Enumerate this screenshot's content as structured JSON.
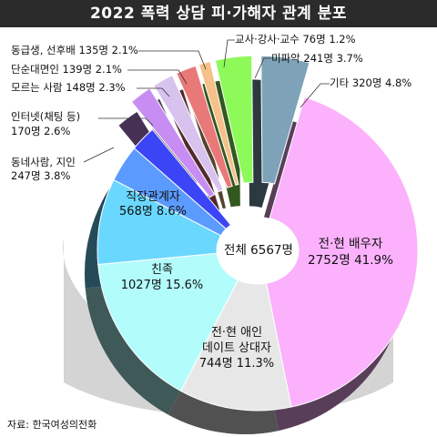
{
  "title": "2022 폭력 상담 피·가해자 관계 분포",
  "source": "자료: 한국여성의전화",
  "chart_data": {
    "type": "pie",
    "title": "2022 폭력 상담 피·가해자 관계 분포",
    "center_label": "전체 6567명",
    "total": 6567,
    "unit": "명",
    "slices": [
      {
        "name": "전·현 배우자",
        "count": 2752,
        "percent": 41.9,
        "color": "#fbb1fb",
        "label": "전·현 배우자",
        "value_text": "2752명 41.9%"
      },
      {
        "name": "전·현 애인 데이트 상대자",
        "count": 744,
        "percent": 11.3,
        "color": "#e7e7e7",
        "label1": "전·현 애인",
        "label2": "데이트 상대자",
        "value_text": "744명 11.3%"
      },
      {
        "name": "친족",
        "count": 1027,
        "percent": 15.6,
        "color": "#b3fcfc",
        "label": "친족",
        "value_text": "1027명 15.6%"
      },
      {
        "name": "직장관계자",
        "count": 568,
        "percent": 8.6,
        "color": "#6ad7ff",
        "label": "직장관계자",
        "value_text": "568명 8.6%"
      },
      {
        "name": "동네사람, 지인",
        "count": 247,
        "percent": 3.8,
        "color": "#5b9bff",
        "label": "동네사람, 지인",
        "value_text": "247명 3.8%"
      },
      {
        "name": "인터넷(채팅 등)",
        "count": 170,
        "percent": 2.6,
        "color": "#3b45f6",
        "label": "인터넷(채팅 등)",
        "value_text": "170명 2.6%"
      },
      {
        "name": "모르는 사람",
        "count": 148,
        "percent": 2.3,
        "color": "#c88df3",
        "label": "모르는 사람 148명 2.3%"
      },
      {
        "name": "단순대면인",
        "count": 139,
        "percent": 2.1,
        "color": "#d8c2ee",
        "label": "단순대면인 139명 2.1%"
      },
      {
        "name": "동급생, 선후배",
        "count": 135,
        "percent": 2.1,
        "color": "#e97979",
        "label": "동급생, 선후배 135명 2.1%"
      },
      {
        "name": "교사·강사·교수",
        "count": 76,
        "percent": 1.2,
        "color": "#f5c08a",
        "label": "교사·강사·교수 76명 1.2%"
      },
      {
        "name": "미파악",
        "count": 241,
        "percent": 3.7,
        "color": "#8efa5a",
        "label": "미파악 241명 3.7%"
      },
      {
        "name": "기타",
        "count": 320,
        "percent": 4.8,
        "color": "#7ea3b8",
        "label": "기타 320명 4.8%"
      }
    ]
  }
}
